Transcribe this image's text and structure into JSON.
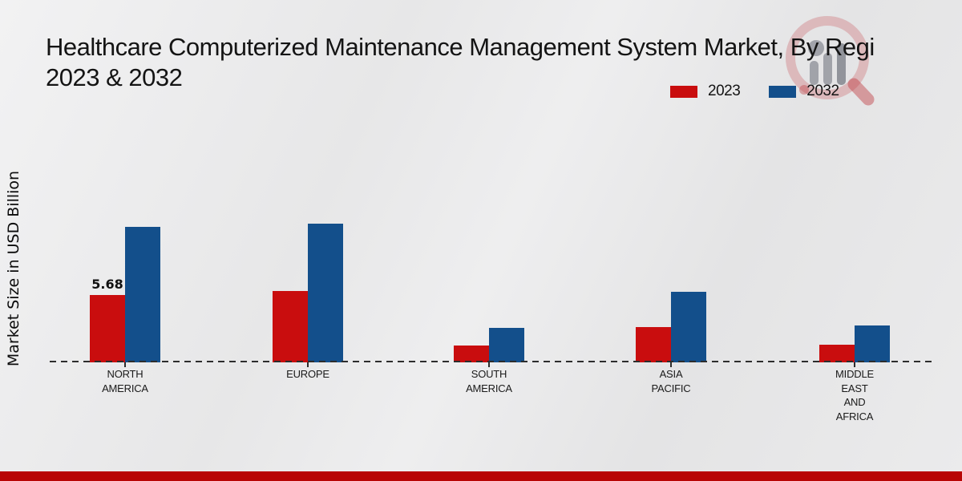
{
  "title": {
    "line1": "Healthcare Computerized Maintenance Management System Market, By Regi",
    "line2": "2023 & 2032"
  },
  "y_axis_label": "Market Size in USD Billion",
  "legend": {
    "items": [
      {
        "label": "2023",
        "color": "#c90d0e"
      },
      {
        "label": "2032",
        "color": "#134f8b"
      }
    ]
  },
  "footer": {
    "accent_color": "#b80505"
  },
  "watermark": {
    "name": "market-research-future-logo"
  },
  "colors": {
    "series_2023": "#c90d0e",
    "series_2032": "#134f8b",
    "baseline": "#2d2d2d",
    "background": "#e8e8e9"
  },
  "chart_data": {
    "type": "bar",
    "title": "Healthcare Computerized Maintenance Management System Market, By Regi 2023 & 2032",
    "ylabel": "Market Size in USD Billion",
    "xlabel": "",
    "categories": [
      "NORTH AMERICA",
      "EUROPE",
      "SOUTH AMERICA",
      "ASIA PACIFIC",
      "MIDDLE EAST AND AFRICA"
    ],
    "category_label_lines": [
      [
        "NORTH",
        "AMERICA"
      ],
      [
        "EUROPE"
      ],
      [
        "SOUTH",
        "AMERICA"
      ],
      [
        "ASIA",
        "PACIFIC"
      ],
      [
        "MIDDLE",
        "EAST",
        "AND",
        "AFRICA"
      ]
    ],
    "series": [
      {
        "name": "2023",
        "color": "#c90d0e",
        "values": [
          5.68,
          6.02,
          1.42,
          2.97,
          1.49
        ]
      },
      {
        "name": "2032",
        "color": "#134f8b",
        "values": [
          11.43,
          11.7,
          2.91,
          5.95,
          3.11
        ]
      }
    ],
    "data_labels": [
      {
        "series": "2023",
        "category": "NORTH AMERICA",
        "text": "5.68"
      }
    ],
    "ylim": [
      0,
      13
    ],
    "grid": false,
    "legend_position": "top-right",
    "baseline_style": "dashed zero line with category ticks"
  }
}
